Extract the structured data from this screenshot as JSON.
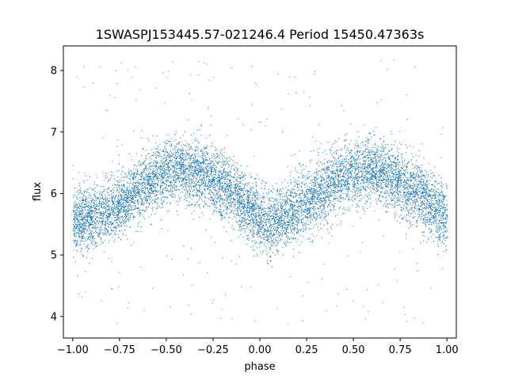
{
  "chart_data": {
    "type": "scatter",
    "title": "1SWASPJ153445.57-021246.4 Period 15450.47363s",
    "xlabel": "phase",
    "ylabel": "flux",
    "xlim": [
      -1.05,
      1.05
    ],
    "ylim": [
      3.65,
      8.4
    ],
    "xticks": [
      -1.0,
      -0.75,
      -0.5,
      -0.25,
      0.0,
      0.25,
      0.5,
      0.75,
      1.0
    ],
    "xtick_labels": [
      "−1.00",
      "−0.75",
      "−0.50",
      "−0.25",
      "0.00",
      "0.25",
      "0.50",
      "0.75",
      "1.00"
    ],
    "yticks": [
      4,
      5,
      6,
      7,
      8
    ],
    "ytick_labels": [
      "4",
      "5",
      "6",
      "7",
      "8"
    ],
    "grid": false,
    "color": "#1f77b4",
    "series": [
      {
        "name": "",
        "marker": "point",
        "x_range": [
          -1.0,
          1.0
        ],
        "trend": {
          "x": [
            -1.0,
            -0.9,
            -0.75,
            -0.6,
            -0.45,
            -0.3,
            -0.15,
            0.0,
            0.05,
            0.15,
            0.3,
            0.45,
            0.6,
            0.75,
            0.9,
            1.0
          ],
          "y": [
            5.55,
            5.6,
            5.8,
            6.2,
            6.4,
            6.3,
            6.0,
            5.6,
            5.5,
            5.65,
            6.0,
            6.3,
            6.4,
            6.2,
            5.85,
            5.6
          ]
        },
        "scatter_spread": 0.3,
        "outlier_range": [
          3.85,
          8.2
        ]
      }
    ]
  }
}
